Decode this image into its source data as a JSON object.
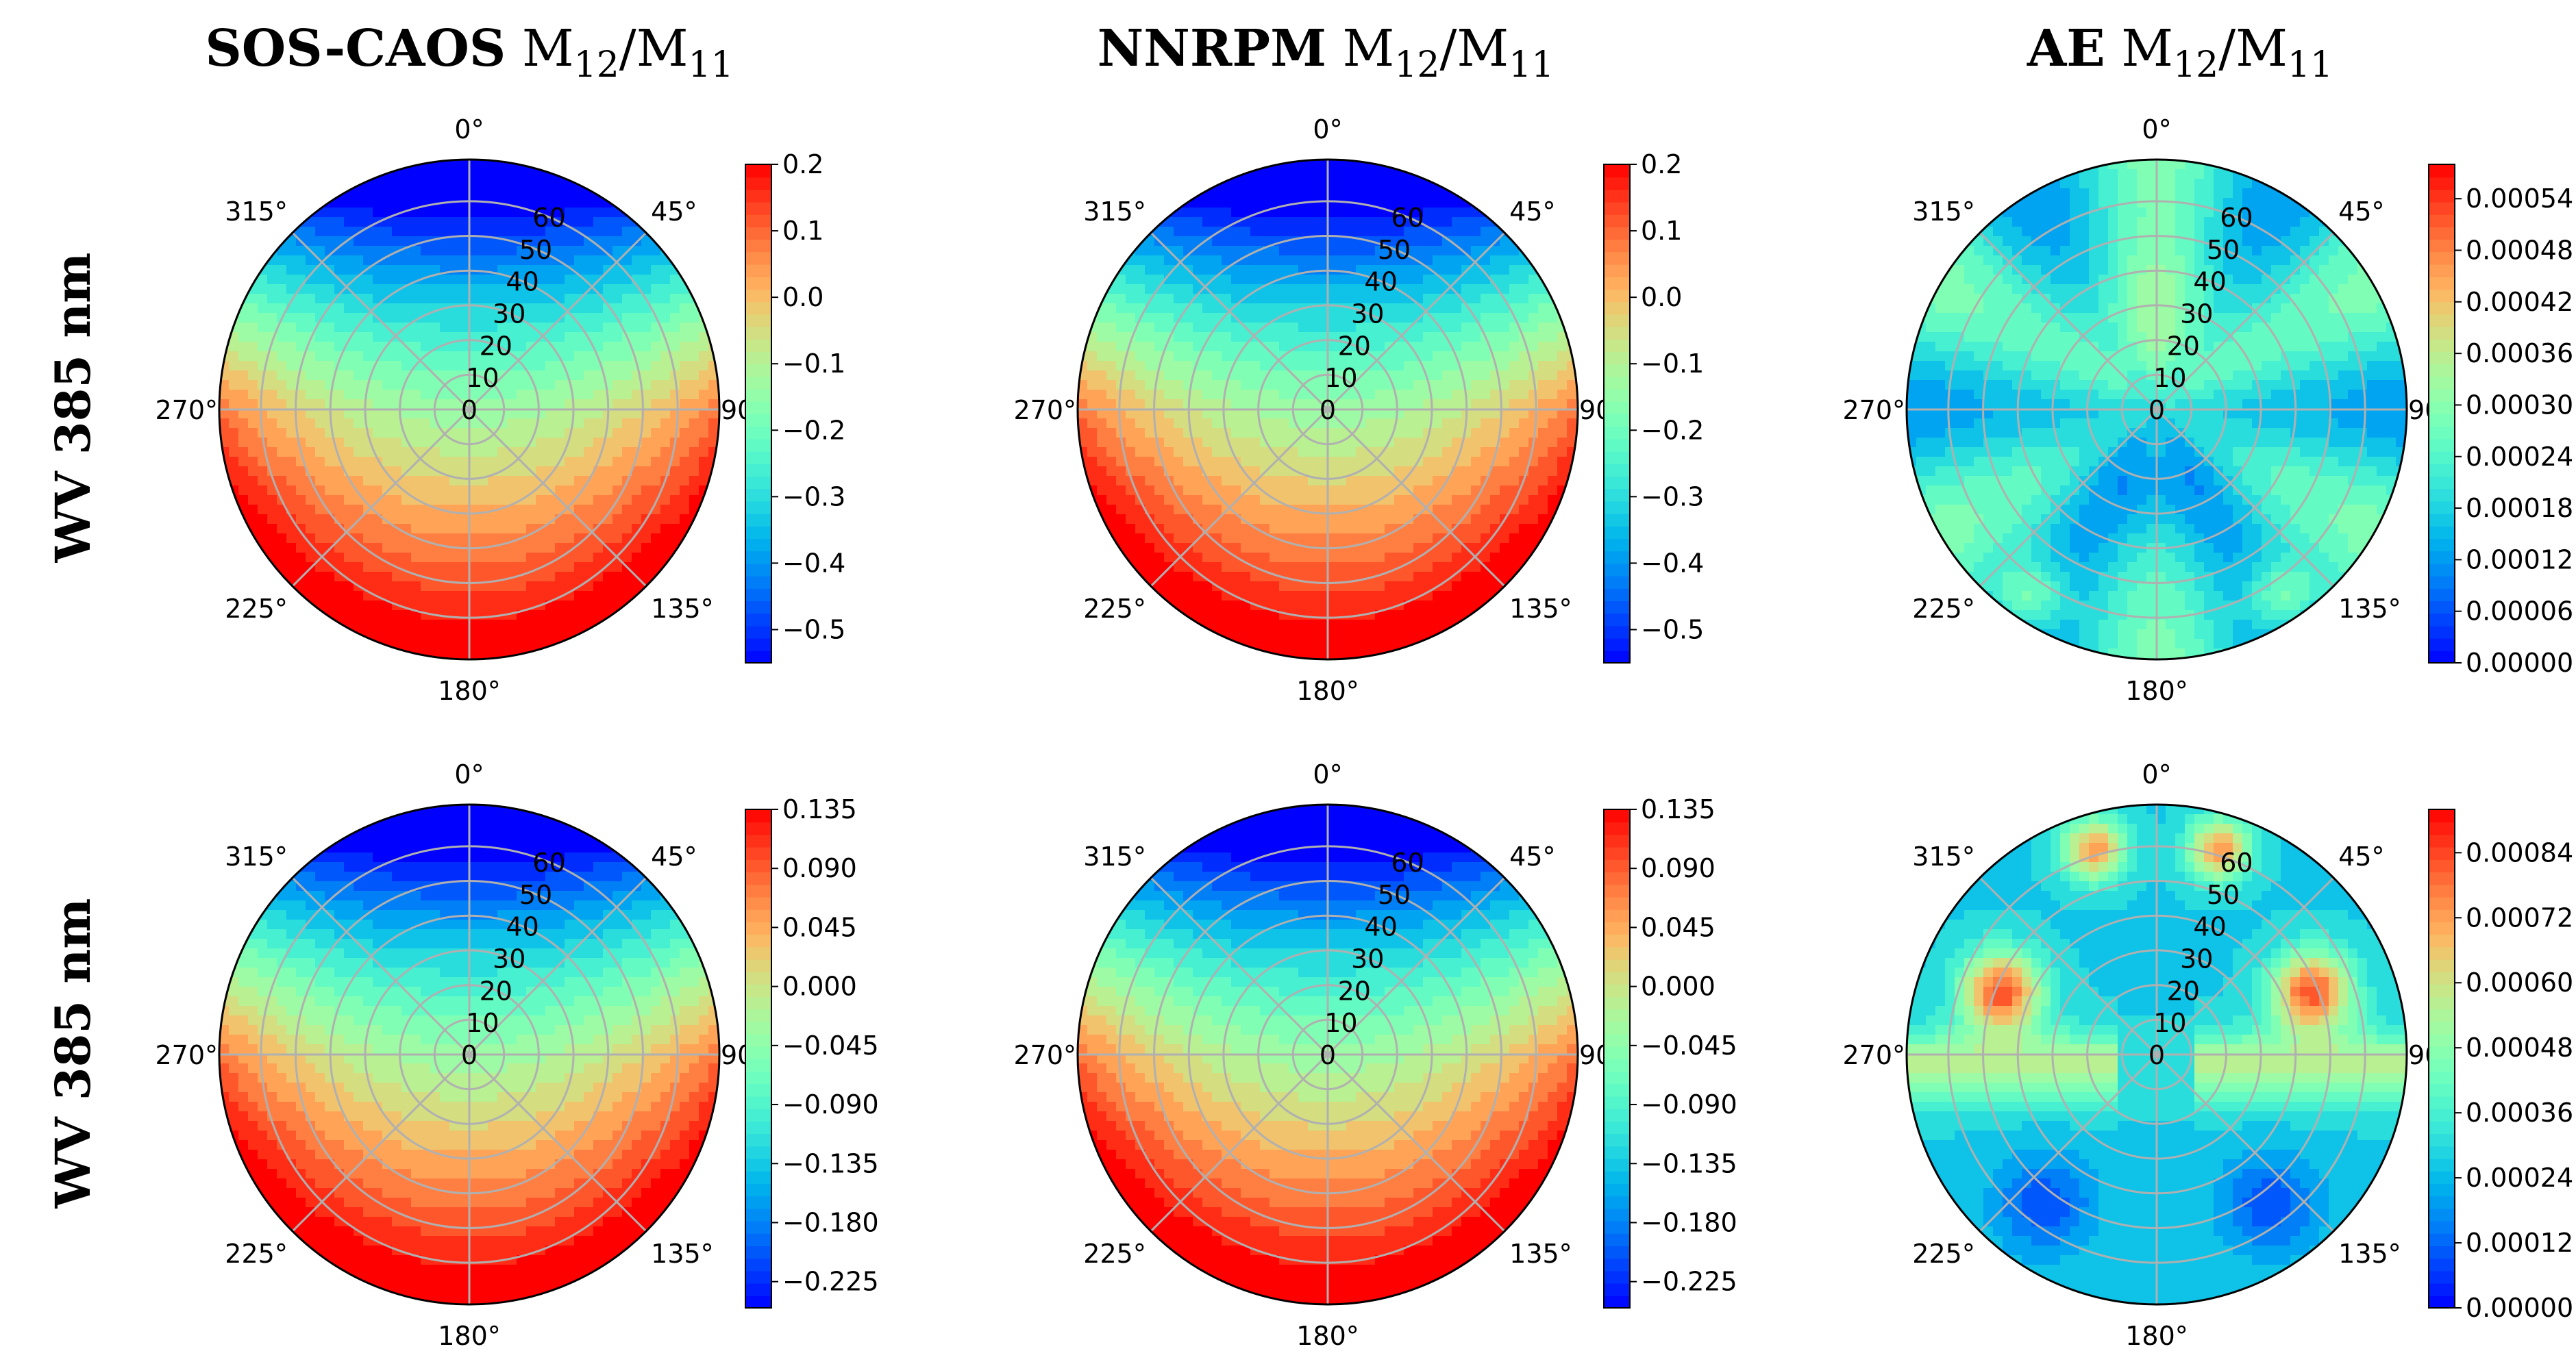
{
  "figure": {
    "column_titles": [
      {
        "bold": "SOS-CAOS",
        "rest": "M",
        "sub1": "12",
        "slash": "/",
        "m2": "M",
        "sub2": "11"
      },
      {
        "bold": "NNRPM",
        "rest": "M",
        "sub1": "12",
        "slash": "/",
        "m2": "M",
        "sub2": "11"
      },
      {
        "bold": "AE",
        "rest": "M",
        "sub1": "12",
        "slash": "/",
        "m2": "M",
        "sub2": "11"
      }
    ],
    "row_labels": [
      "WV 385 nm",
      "WV 385 nm"
    ],
    "colors": {
      "low": "#7f00ff",
      "mid_cyan": "#40e0d0",
      "mid_yellow": "#d8e05a",
      "high": "#ff1d00",
      "grid": "#b0b0b0"
    }
  },
  "chart_data": [
    {
      "type": "polar-contour",
      "name": "sos-caos-row1",
      "pattern": "sos",
      "angle_labels": [
        "0°",
        "45°",
        "90",
        "135°",
        "180°",
        "225°",
        "270°",
        "315°"
      ],
      "radial_ticks": [
        0,
        10,
        20,
        30,
        40,
        50,
        60
      ],
      "rlim": [
        0,
        72
      ],
      "colorbar": {
        "min": -0.55,
        "max": 0.2,
        "ticks": [
          "0.2",
          "0.1",
          "0.0",
          "−0.1",
          "−0.2",
          "−0.3",
          "−0.4",
          "−0.5"
        ],
        "tick_values": [
          0.2,
          0.1,
          0.0,
          -0.1,
          -0.2,
          -0.3,
          -0.4,
          -0.5
        ]
      }
    },
    {
      "type": "polar-contour",
      "name": "nnrpm-row1",
      "pattern": "sos",
      "angle_labels": [
        "0°",
        "45°",
        "90",
        "135°",
        "180°",
        "225°",
        "270°",
        "315°"
      ],
      "radial_ticks": [
        0,
        10,
        20,
        30,
        40,
        50,
        60
      ],
      "rlim": [
        0,
        72
      ],
      "colorbar": {
        "min": -0.55,
        "max": 0.2,
        "ticks": [
          "0.2",
          "0.1",
          "0.0",
          "−0.1",
          "−0.2",
          "−0.3",
          "−0.4",
          "−0.5"
        ],
        "tick_values": [
          0.2,
          0.1,
          0.0,
          -0.1,
          -0.2,
          -0.3,
          -0.4,
          -0.5
        ]
      }
    },
    {
      "type": "polar-contour",
      "name": "ae-row1",
      "pattern": "ae1",
      "angle_labels": [
        "0°",
        "45°",
        "90",
        "135°",
        "180°",
        "225°",
        "270°",
        "315°"
      ],
      "radial_ticks": [
        0,
        10,
        20,
        30,
        40,
        50,
        60
      ],
      "rlim": [
        0,
        72
      ],
      "colorbar": {
        "min": 0.0,
        "max": 0.00058,
        "ticks": [
          "0.00054",
          "0.00048",
          "0.00042",
          "0.00036",
          "0.00030",
          "0.00024",
          "0.00018",
          "0.00012",
          "0.00006",
          "0.00000"
        ],
        "tick_values": [
          0.00054,
          0.00048,
          0.00042,
          0.00036,
          0.0003,
          0.00024,
          0.00018,
          0.00012,
          6e-05,
          0.0
        ]
      }
    },
    {
      "type": "polar-contour",
      "name": "sos-caos-row2",
      "pattern": "sos",
      "angle_labels": [
        "0°",
        "45°",
        "90",
        "135°",
        "180°",
        "225°",
        "270°",
        "315°"
      ],
      "radial_ticks": [
        0,
        10,
        20,
        30,
        40,
        50,
        60
      ],
      "rlim": [
        0,
        72
      ],
      "colorbar": {
        "min": -0.245,
        "max": 0.135,
        "ticks": [
          "0.135",
          "0.090",
          "0.045",
          "0.000",
          "−0.045",
          "−0.090",
          "−0.135",
          "−0.180",
          "−0.225"
        ],
        "tick_values": [
          0.135,
          0.09,
          0.045,
          0.0,
          -0.045,
          -0.09,
          -0.135,
          -0.18,
          -0.225
        ]
      }
    },
    {
      "type": "polar-contour",
      "name": "nnrpm-row2",
      "pattern": "sos",
      "angle_labels": [
        "0°",
        "45°",
        "90",
        "135°",
        "180°",
        "225°",
        "270°",
        "315°"
      ],
      "radial_ticks": [
        0,
        10,
        20,
        30,
        40,
        50,
        60
      ],
      "rlim": [
        0,
        72
      ],
      "colorbar": {
        "min": -0.245,
        "max": 0.135,
        "ticks": [
          "0.135",
          "0.090",
          "0.045",
          "0.000",
          "−0.045",
          "−0.090",
          "−0.135",
          "−0.180",
          "−0.225"
        ],
        "tick_values": [
          0.135,
          0.09,
          0.045,
          0.0,
          -0.045,
          -0.09,
          -0.135,
          -0.18,
          -0.225
        ]
      }
    },
    {
      "type": "polar-contour",
      "name": "ae-row2",
      "pattern": "ae2",
      "angle_labels": [
        "0°",
        "45°",
        "90",
        "135°",
        "180°",
        "225°",
        "270°",
        "315°"
      ],
      "radial_ticks": [
        0,
        10,
        20,
        30,
        40,
        50,
        60
      ],
      "rlim": [
        0,
        72
      ],
      "colorbar": {
        "min": 0.0,
        "max": 0.00092,
        "ticks": [
          "0.00084",
          "0.00072",
          "0.00060",
          "0.00048",
          "0.00036",
          "0.00024",
          "0.00012",
          "0.00000"
        ],
        "tick_values": [
          0.00084,
          0.00072,
          0.0006,
          0.00048,
          0.00036,
          0.00024,
          0.00012,
          0.0
        ]
      }
    }
  ]
}
